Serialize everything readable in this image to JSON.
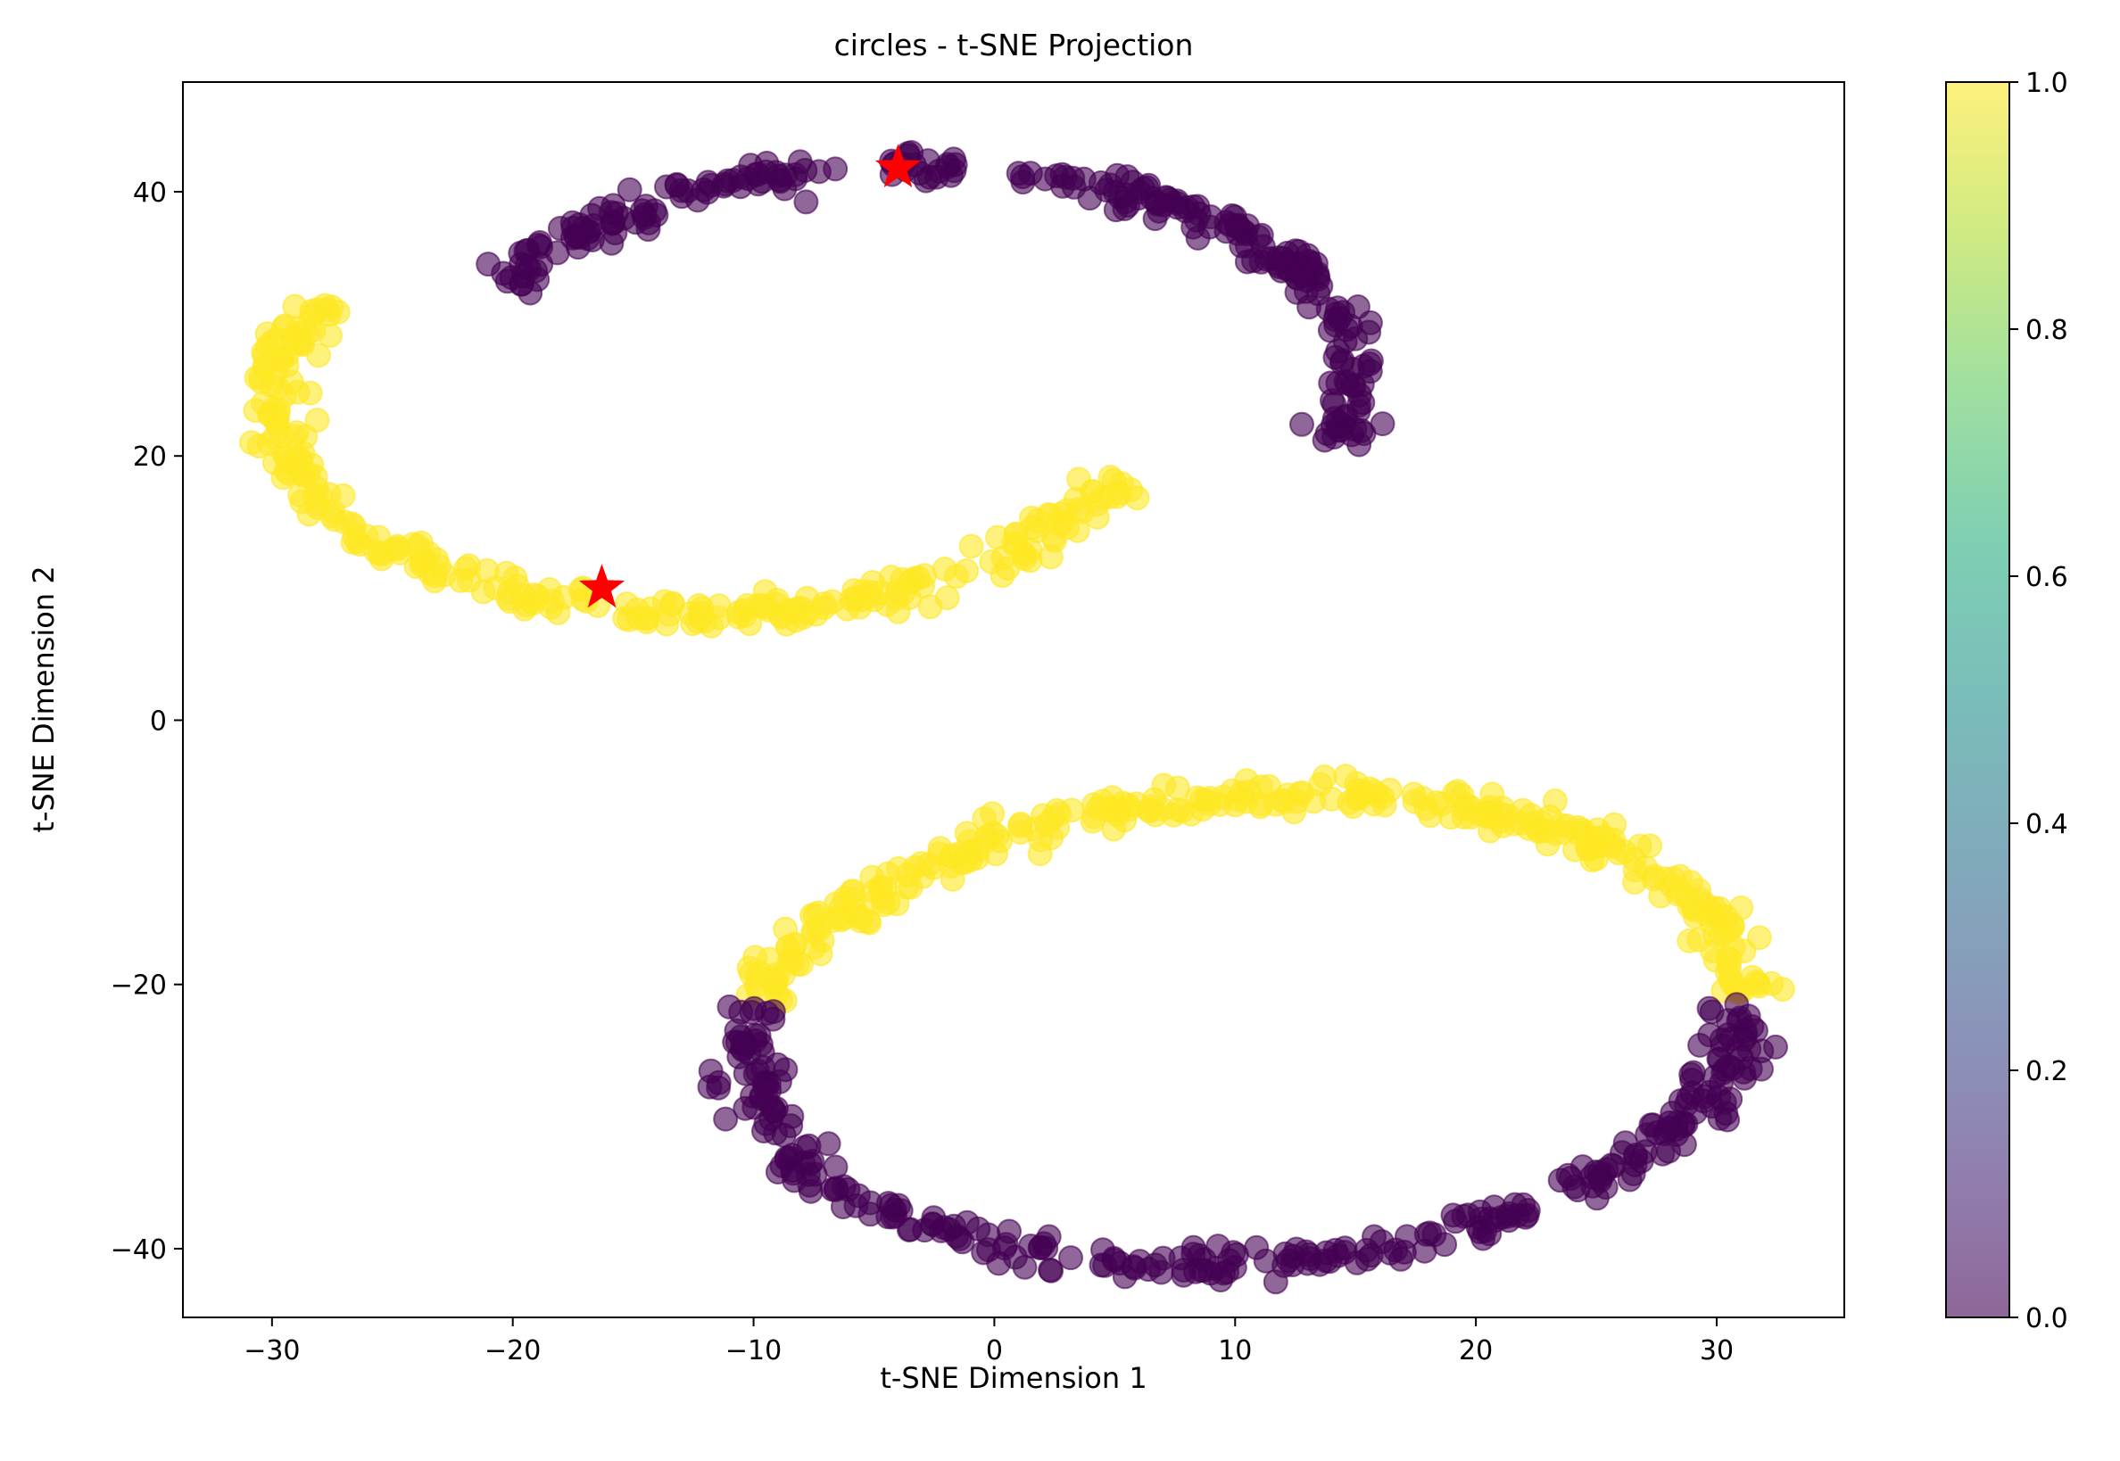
{
  "chart_data": {
    "type": "scatter",
    "title": "circles - t-SNE Projection",
    "xlabel": "t-SNE Dimension 1",
    "ylabel": "t-SNE Dimension 2",
    "xlim": [
      -33.7,
      35.3
    ],
    "ylim": [
      -45.2,
      48.3
    ],
    "xticks": [
      -30,
      -20,
      -10,
      0,
      10,
      20,
      30
    ],
    "xtick_labels": [
      "−30",
      "−20",
      "−10",
      "0",
      "10",
      "20",
      "30"
    ],
    "yticks": [
      -40,
      -20,
      0,
      20,
      40
    ],
    "ytick_labels": [
      "−40",
      "−20",
      "0",
      "20",
      "40"
    ],
    "grid": false,
    "colormap": "viridis",
    "marker_alpha": 0.6,
    "colors": {
      "class_0": "#440154",
      "class_1": "#fde725",
      "highlight_star": "#ff0000"
    },
    "colorbar": {
      "range": [
        0.0,
        1.0
      ],
      "ticks": [
        0.0,
        0.2,
        0.4,
        0.6,
        0.8,
        1.0
      ],
      "tick_labels": [
        "0.0",
        "0.2",
        "0.4",
        "0.6",
        "0.8",
        "1.0"
      ]
    },
    "clusters": [
      {
        "class": 0,
        "arc_center": [
          -3.5,
          26.0
        ],
        "radius": [
          18.6,
          16.0
        ],
        "angle_deg_range": [
          -18,
          155
        ],
        "gap_deg": [
          [
            93,
            99
          ],
          [
            76,
            82
          ]
        ],
        "points": 280
      },
      {
        "class": 1,
        "arc_center": [
          -12.0,
          24.0
        ],
        "radius": [
          18.0,
          16.0
        ],
        "angle_deg_range": [
          152,
          340
        ],
        "points": 290
      },
      {
        "class": 1,
        "arc_center": [
          10.5,
          -23.5
        ],
        "radius": [
          21.0,
          17.5
        ],
        "angle_deg_range": [
          -12,
          153
        ],
        "rotation_deg": 18,
        "points": 320
      },
      {
        "class": 0,
        "arc_center": [
          10.5,
          -23.5
        ],
        "radius": [
          21.0,
          17.5
        ],
        "angle_deg_range": [
          153,
          346
        ],
        "rotation_deg": 18,
        "gap_deg": [
          [
            290,
            296
          ]
        ],
        "points": 320
      }
    ],
    "highlighted_points": [
      {
        "x": -4.0,
        "y": 41.8
      },
      {
        "x": -16.3,
        "y": 10.0
      }
    ]
  }
}
